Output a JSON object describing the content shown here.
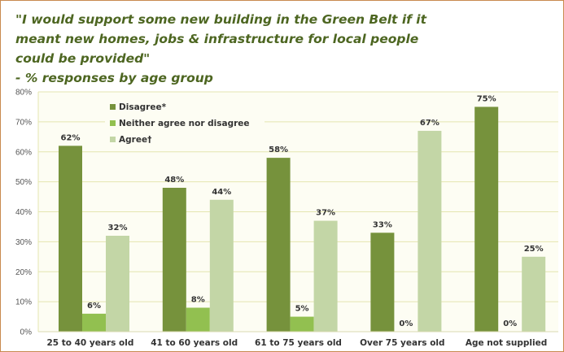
{
  "chart_data": {
    "type": "bar",
    "title_lines": [
      "\"I would support some new building in the Green Belt if it",
      "meant new homes, jobs & infrastructure for local people",
      "could be provided\""
    ],
    "subtitle": "- % responses by age group",
    "categories": [
      "25 to 40 years old",
      "41 to 60 years old",
      "61 to 75 years old",
      "Over 75 years old",
      "Age not supplied"
    ],
    "series": [
      {
        "name": "Disagree*",
        "color": "#76923c",
        "values": [
          62,
          48,
          58,
          33,
          75
        ],
        "labels": [
          "62%",
          "48%",
          "58%",
          "33%",
          "75%"
        ]
      },
      {
        "name": "Neither agree nor disagree",
        "color": "#92c050",
        "values": [
          6,
          8,
          5,
          0,
          0
        ],
        "labels": [
          "6%",
          "8%",
          "5%",
          "0%",
          "0%"
        ]
      },
      {
        "name": "Agree†",
        "color": "#c3d6a6",
        "values": [
          32,
          44,
          37,
          67,
          25
        ],
        "labels": [
          "32%",
          "44%",
          "37%",
          "67%",
          "25%"
        ]
      }
    ],
    "ylim": [
      0,
      80
    ],
    "yticks": [
      0,
      10,
      20,
      30,
      40,
      50,
      60,
      70,
      80
    ],
    "ytick_labels": [
      "0%",
      "10%",
      "20%",
      "30%",
      "40%",
      "50%",
      "60%",
      "70%",
      "80%"
    ],
    "grid": true,
    "legend_position": "top-left",
    "plot_background": "#fdfdf3",
    "grid_color": "#e4e6b0"
  }
}
